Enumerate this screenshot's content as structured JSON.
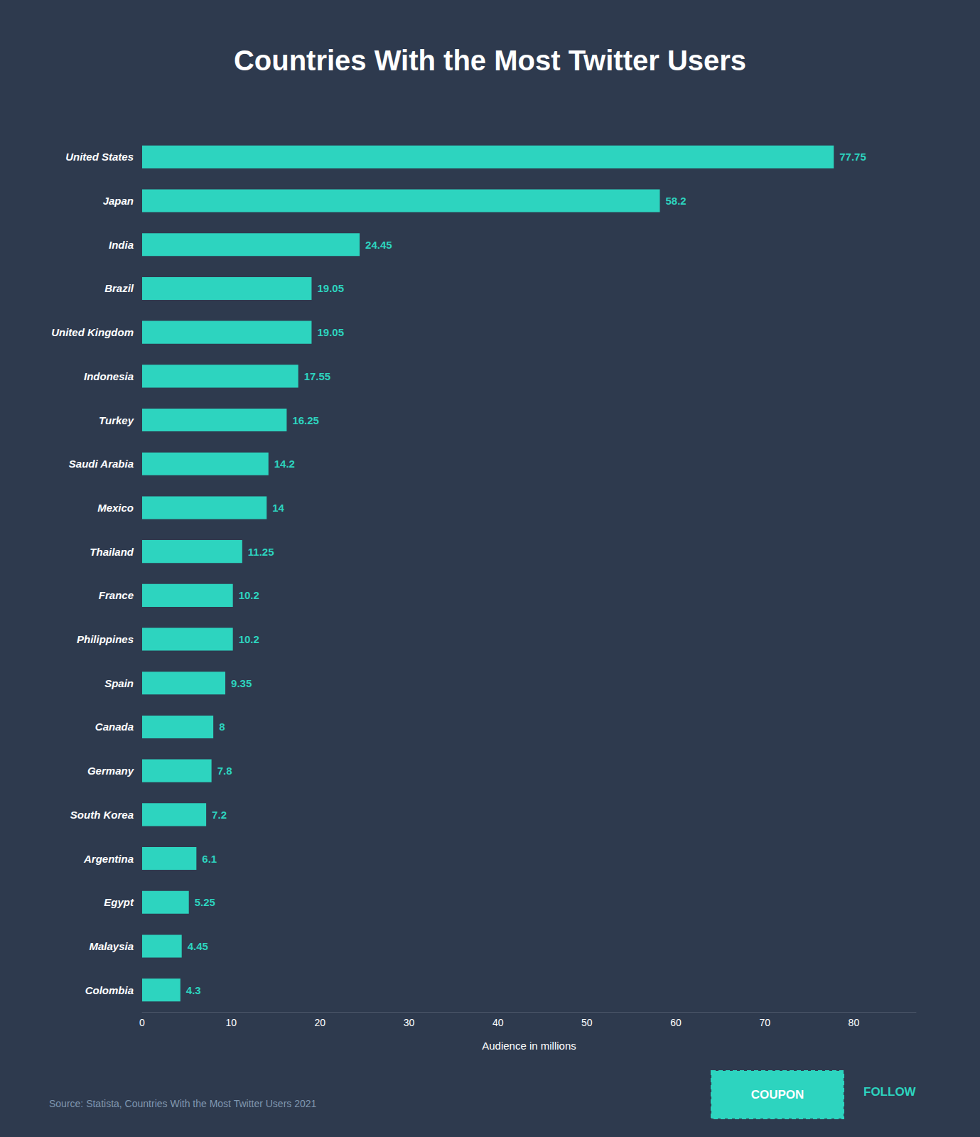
{
  "chart_data": {
    "type": "bar",
    "orientation": "horizontal",
    "title": "Countries With the Most Twitter Users",
    "categories": [
      "United States",
      "Japan",
      "India",
      "Brazil",
      "United Kingdom",
      "Indonesia",
      "Turkey",
      "Saudi Arabia",
      "Mexico",
      "Thailand",
      "France",
      "Philippines",
      "Spain",
      "Canada",
      "Germany",
      "South Korea",
      "Argentina",
      "Egypt",
      "Malaysia",
      "Colombia"
    ],
    "values": [
      77.75,
      58.2,
      24.45,
      19.05,
      19.05,
      17.55,
      16.25,
      14.2,
      14,
      11.25,
      10.2,
      10.2,
      9.35,
      8,
      7.8,
      7.2,
      6.1,
      5.25,
      4.45,
      4.3
    ],
    "color": "#2DD4BF",
    "xlabel": "Audience in millions",
    "xlim": [
      0,
      87
    ],
    "xticks": [
      0,
      10,
      20,
      30,
      40,
      50,
      60,
      70,
      80
    ],
    "grid": false,
    "data_labels": true,
    "source": "Source: Statista, Countries With the Most Twitter Users 2021",
    "annotations": [
      "COUPON",
      "FOLLOW"
    ]
  }
}
